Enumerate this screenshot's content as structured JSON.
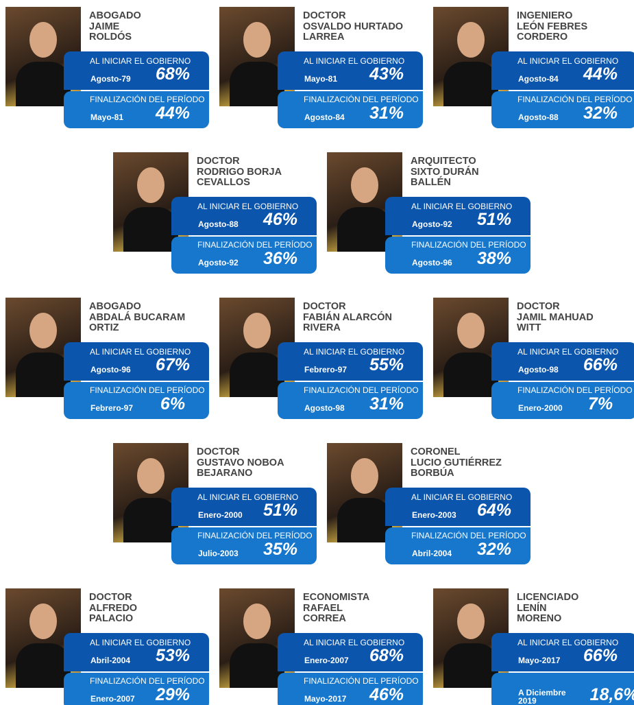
{
  "presidents": [
    {
      "title": [
        "ABOGADO",
        "JAIME",
        "ROLDÓS"
      ],
      "start_label": "AL INICIAR EL GOBIERNO",
      "start_date": "Agosto-79",
      "start_pct": "68%",
      "end_label": "FINALIZACIÓN DEL PERÍODO",
      "end_date": "Mayo-81",
      "end_pct": "44%"
    },
    {
      "title": [
        "DOCTOR",
        "OSVALDO HURTADO",
        "LARREA"
      ],
      "start_label": "AL INICIAR EL GOBIERNO",
      "start_date": "Mayo-81",
      "start_pct": "43%",
      "end_label": "FINALIZACIÓN DEL PERÍODO",
      "end_date": "Agosto-84",
      "end_pct": "31%"
    },
    {
      "title": [
        "INGENIERO",
        "LEÓN FEBRES",
        "CORDERO"
      ],
      "start_label": "AL INICIAR EL GOBIERNO",
      "start_date": "Agosto-84",
      "start_pct": "44%",
      "end_label": "FINALIZACIÓN DEL PERÍODO",
      "end_date": "Agosto-88",
      "end_pct": "32%"
    },
    {
      "title": [
        "DOCTOR",
        "RODRIGO BORJA",
        "CEVALLOS"
      ],
      "start_label": "AL INICIAR EL GOBIERNO",
      "start_date": "Agosto-88",
      "start_pct": "46%",
      "end_label": "FINALIZACIÓN DEL PERÍODO",
      "end_date": "Agosto-92",
      "end_pct": "36%"
    },
    {
      "title": [
        "ARQUITECTO",
        "SIXTO DURÁN",
        "BALLÉN"
      ],
      "start_label": "AL INICIAR EL GOBIERNO",
      "start_date": "Agosto-92",
      "start_pct": "51%",
      "end_label": "FINALIZACIÓN DEL PERÍODO",
      "end_date": "Agosto-96",
      "end_pct": "38%"
    },
    {
      "title": [
        "ABOGADO",
        "ABDALÁ BUCARAM",
        "ORTIZ"
      ],
      "start_label": "AL INICIAR EL GOBIERNO",
      "start_date": "Agosto-96",
      "start_pct": "67%",
      "end_label": "FINALIZACIÓN DEL PERÍODO",
      "end_date": "Febrero-97",
      "end_pct": "6%"
    },
    {
      "title": [
        "DOCTOR",
        "FABIÁN ALARCÓN",
        "RIVERA"
      ],
      "start_label": "AL INICIAR EL GOBIERNO",
      "start_date": "Febrero-97",
      "start_pct": "55%",
      "end_label": "FINALIZACIÓN DEL PERÍODO",
      "end_date": "Agosto-98",
      "end_pct": "31%"
    },
    {
      "title": [
        "DOCTOR",
        "JAMIL MAHUAD",
        "WITT"
      ],
      "start_label": "AL INICIAR EL GOBIERNO",
      "start_date": "Agosto-98",
      "start_pct": "66%",
      "end_label": "FINALIZACIÓN DEL PERÍODO",
      "end_date": "Enero-2000",
      "end_pct": "7%"
    },
    {
      "title": [
        "DOCTOR",
        "GUSTAVO NOBOA",
        "BEJARANO"
      ],
      "start_label": "AL INICIAR EL GOBIERNO",
      "start_date": "Enero-2000",
      "start_pct": "51%",
      "end_label": "FINALIZACIÓN DEL PERÍODO",
      "end_date": "Julio-2003",
      "end_pct": "35%"
    },
    {
      "title": [
        "CORONEL",
        "LUCIO GUTIÉRREZ",
        "BORBÚA"
      ],
      "start_label": "AL INICIAR EL GOBIERNO",
      "start_date": "Enero-2003",
      "start_pct": "64%",
      "end_label": "FINALIZACIÓN DEL PERÍODO",
      "end_date": "Abril-2004",
      "end_pct": "32%"
    },
    {
      "title": [
        "DOCTOR",
        "ALFREDO",
        "PALACIO"
      ],
      "start_label": "AL INICIAR EL GOBIERNO",
      "start_date": "Abril-2004",
      "start_pct": "53%",
      "end_label": "FINALIZACIÓN DEL PERÍODO",
      "end_date": "Enero-2007",
      "end_pct": "29%"
    },
    {
      "title": [
        "ECONOMISTA",
        "RAFAEL",
        "CORREA"
      ],
      "start_label": "AL INICIAR EL GOBIERNO",
      "start_date": "Enero-2007",
      "start_pct": "68%",
      "end_label": "FINALIZACIÓN DEL PERÍODO",
      "end_date": "Mayo-2017",
      "end_pct": "46%"
    },
    {
      "title": [
        "LICENCIADO",
        "LENÍN",
        "MORENO"
      ],
      "start_label": "AL INICIAR EL GOBIERNO",
      "start_date": "Mayo-2017",
      "start_pct": "66%",
      "end_date": "A Diciembre 2019",
      "end_pct": "18,6%"
    }
  ]
}
